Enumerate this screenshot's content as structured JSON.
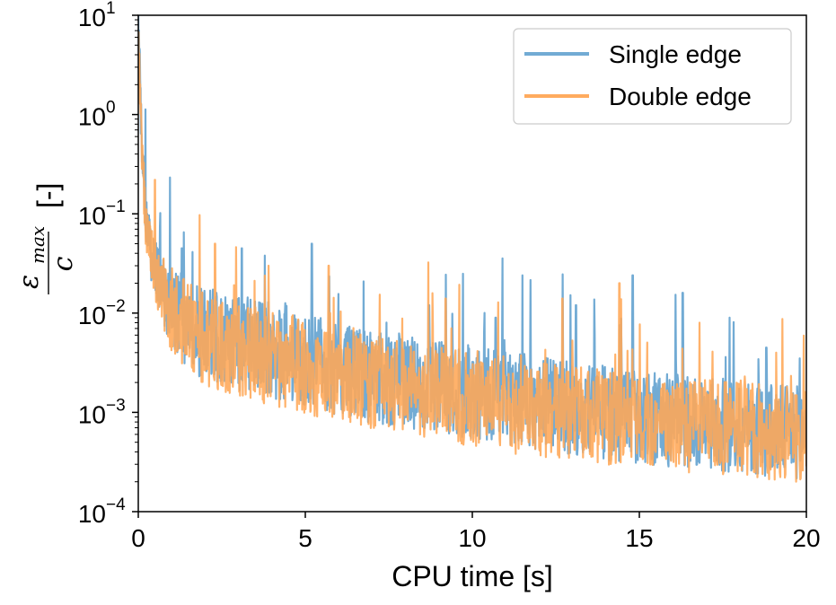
{
  "chart_data": {
    "type": "line",
    "xlabel": "CPU time [s]",
    "ylabel": {
      "numerator_symbol": "ε",
      "numerator_subscript": "max",
      "denominator": "c",
      "unit": "[-]"
    },
    "xlim": [
      0,
      20
    ],
    "ylim": [
      0.0001,
      10
    ],
    "yscale": "log",
    "grid": false,
    "legend_position": "top-right",
    "x_ticks": [
      "0",
      "5",
      "10",
      "15",
      "20"
    ],
    "y_ticks": [
      {
        "base": "10",
        "exp": "1"
      },
      {
        "base": "10",
        "exp": "0"
      },
      {
        "base": "10",
        "exp": "−1"
      },
      {
        "base": "10",
        "exp": "−2"
      },
      {
        "base": "10",
        "exp": "−3"
      },
      {
        "base": "10",
        "exp": "−4"
      }
    ],
    "series": [
      {
        "name": "Single edge",
        "color": "#6aa6d2",
        "x": [
          0,
          0.05,
          0.1,
          0.2,
          0.3,
          0.5,
          0.7,
          1,
          1.5,
          2,
          3,
          4,
          5,
          6,
          7,
          8,
          9,
          10,
          11,
          12,
          13,
          14,
          15,
          16,
          17,
          18,
          19,
          20
        ],
        "y": [
          8,
          2.5,
          0.6,
          0.12,
          0.06,
          0.03,
          0.02,
          0.012,
          0.009,
          0.007,
          0.0055,
          0.0045,
          0.0037,
          0.003,
          0.0026,
          0.0023,
          0.002,
          0.0018,
          0.0016,
          0.0014,
          0.0012,
          0.0011,
          0.001,
          0.00092,
          0.00085,
          0.0008,
          0.00075,
          0.0007
        ],
        "peaks": [
          [
            1.3,
            0.045
          ],
          [
            3.1,
            0.045
          ],
          [
            5.2,
            0.05
          ],
          [
            8.7,
            0.012
          ],
          [
            10.7,
            0.009
          ],
          [
            11.5,
            0.024
          ],
          [
            13.1,
            0.012
          ],
          [
            14.8,
            0.024
          ],
          [
            16.3,
            0.016
          ],
          [
            17.7,
            0.009
          ],
          [
            18.8,
            0.0045
          ],
          [
            19.8,
            0.0035
          ]
        ]
      },
      {
        "name": "Double edge",
        "color": "#ffa756",
        "x": [
          0,
          0.05,
          0.1,
          0.2,
          0.3,
          0.5,
          0.7,
          1,
          1.5,
          2,
          3,
          4,
          5,
          6,
          7,
          8,
          9,
          10,
          11,
          12,
          13,
          14,
          15,
          16,
          17,
          18,
          19,
          20
        ],
        "y": [
          7,
          2.2,
          0.55,
          0.11,
          0.055,
          0.028,
          0.018,
          0.011,
          0.008,
          0.006,
          0.0048,
          0.0039,
          0.0032,
          0.0026,
          0.0022,
          0.0019,
          0.0017,
          0.0015,
          0.0013,
          0.0012,
          0.0011,
          0.001,
          0.0009,
          0.00085,
          0.0008,
          0.00075,
          0.0007,
          0.00065
        ],
        "peaks": [
          [
            0.5,
            0.22
          ],
          [
            2.3,
            0.05
          ],
          [
            3.9,
            0.03
          ],
          [
            5.7,
            0.03
          ],
          [
            9.2,
            0.014
          ],
          [
            12.7,
            0.014
          ],
          [
            14.4,
            0.02
          ],
          [
            16.8,
            0.008
          ],
          [
            19.1,
            0.004
          ]
        ]
      }
    ]
  }
}
